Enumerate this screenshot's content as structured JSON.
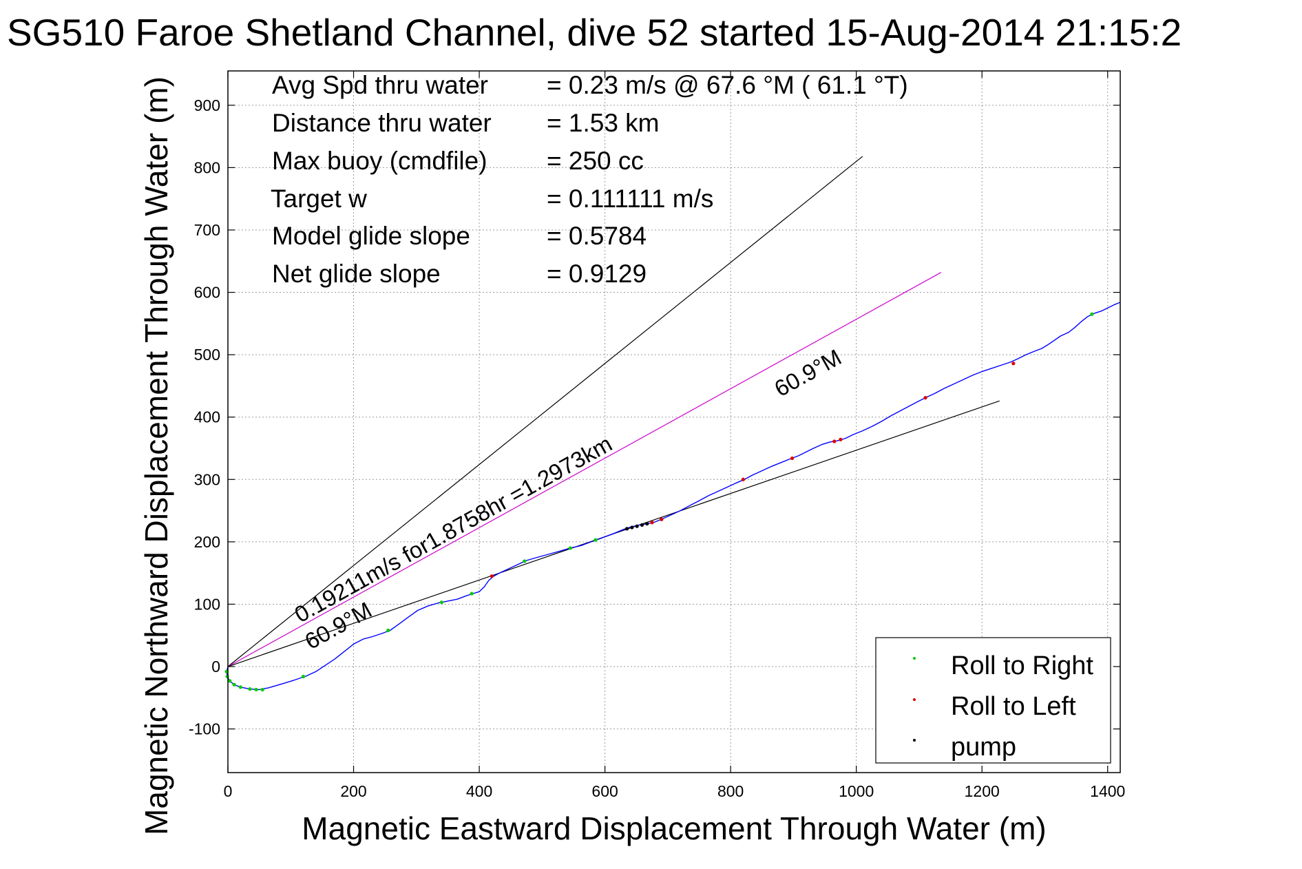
{
  "chart_data": {
    "type": "line",
    "title": "SG510 Faroe Shetland Channel, dive 52 started 15-Aug-2014 21:15:2",
    "xlabel": "Magnetic Eastward Displacement Through Water (m)",
    "ylabel": "Magnetic Northward Displacement Through Water (m)",
    "xlim": [
      0,
      1420
    ],
    "ylim": [
      -170,
      955
    ],
    "xticks": [
      0,
      200,
      400,
      600,
      800,
      1000,
      1200,
      1400
    ],
    "yticks": [
      -100,
      0,
      100,
      200,
      300,
      400,
      500,
      600,
      700,
      800,
      900
    ],
    "grid": true,
    "legend_position": "bottom-right",
    "stats": [
      {
        "label": "Avg Spd thru water",
        "value": "=  0.23 m/s @  67.6 °M ( 61.1 °T)"
      },
      {
        "label": "Distance thru water",
        "value": "=  1.53 km"
      },
      {
        "label": "Max buoy (cmdfile)",
        "value": "= 250 cc"
      },
      {
        "label": "Target w",
        "value": "= 0.111111 m/s"
      },
      {
        "label": "Model glide slope",
        "value": "= 0.5784"
      },
      {
        "label": "Net glide slope",
        "value": "= 0.9129"
      }
    ],
    "annotations": {
      "speed_line": "0.19211m/s for1.8758hr =1.2973km",
      "heading_upper": "60.9°M",
      "heading_lower": "60.9°M"
    },
    "reference_lines": [
      {
        "color": "#000000",
        "points": [
          [
            0,
            0
          ],
          [
            1010,
            818
          ]
        ]
      },
      {
        "color": "#cc00cc",
        "points": [
          [
            0,
            0
          ],
          [
            1135,
            632
          ]
        ]
      },
      {
        "color": "#000000",
        "points": [
          [
            0,
            0
          ],
          [
            1228,
            426
          ]
        ]
      }
    ],
    "track": {
      "color": "#0000ff",
      "points": [
        [
          0,
          0
        ],
        [
          -2,
          -8
        ],
        [
          -1,
          -16
        ],
        [
          3,
          -23
        ],
        [
          10,
          -29
        ],
        [
          20,
          -33
        ],
        [
          35,
          -36
        ],
        [
          50,
          -37
        ],
        [
          65,
          -34
        ],
        [
          85,
          -28
        ],
        [
          105,
          -22
        ],
        [
          125,
          -15
        ],
        [
          140,
          -8
        ],
        [
          155,
          2
        ],
        [
          170,
          12
        ],
        [
          185,
          24
        ],
        [
          200,
          36
        ],
        [
          215,
          44
        ],
        [
          230,
          48
        ],
        [
          245,
          53
        ],
        [
          258,
          58
        ],
        [
          272,
          68
        ],
        [
          288,
          80
        ],
        [
          302,
          90
        ],
        [
          318,
          97
        ],
        [
          335,
          102
        ],
        [
          350,
          105
        ],
        [
          365,
          108
        ],
        [
          378,
          113
        ],
        [
          390,
          117
        ],
        [
          400,
          120
        ],
        [
          408,
          128
        ],
        [
          415,
          138
        ],
        [
          423,
          145
        ],
        [
          432,
          150
        ],
        [
          445,
          156
        ],
        [
          460,
          163
        ],
        [
          475,
          170
        ],
        [
          492,
          175
        ],
        [
          510,
          180
        ],
        [
          528,
          185
        ],
        [
          545,
          190
        ],
        [
          562,
          194
        ],
        [
          578,
          200
        ],
        [
          592,
          205
        ],
        [
          605,
          210
        ],
        [
          618,
          215
        ],
        [
          630,
          220
        ],
        [
          642,
          224
        ],
        [
          655,
          227
        ],
        [
          668,
          229
        ],
        [
          680,
          232
        ],
        [
          692,
          237
        ],
        [
          705,
          243
        ],
        [
          720,
          250
        ],
        [
          735,
          258
        ],
        [
          750,
          266
        ],
        [
          765,
          274
        ],
        [
          780,
          281
        ],
        [
          795,
          288
        ],
        [
          808,
          294
        ],
        [
          822,
          300
        ],
        [
          835,
          307
        ],
        [
          850,
          314
        ],
        [
          865,
          321
        ],
        [
          880,
          327
        ],
        [
          895,
          333
        ],
        [
          908,
          338
        ],
        [
          920,
          344
        ],
        [
          932,
          350
        ],
        [
          945,
          356
        ],
        [
          958,
          360
        ],
        [
          970,
          362
        ],
        [
          983,
          366
        ],
        [
          995,
          372
        ],
        [
          1010,
          378
        ],
        [
          1025,
          385
        ],
        [
          1040,
          393
        ],
        [
          1055,
          402
        ],
        [
          1070,
          410
        ],
        [
          1085,
          418
        ],
        [
          1100,
          426
        ],
        [
          1112,
          432
        ],
        [
          1125,
          438
        ],
        [
          1140,
          446
        ],
        [
          1155,
          453
        ],
        [
          1170,
          460
        ],
        [
          1185,
          467
        ],
        [
          1200,
          473
        ],
        [
          1215,
          478
        ],
        [
          1230,
          483
        ],
        [
          1245,
          488
        ],
        [
          1258,
          494
        ],
        [
          1270,
          500
        ],
        [
          1282,
          505
        ],
        [
          1295,
          510
        ],
        [
          1305,
          516
        ],
        [
          1315,
          523
        ],
        [
          1325,
          530
        ],
        [
          1338,
          536
        ],
        [
          1348,
          544
        ],
        [
          1358,
          553
        ],
        [
          1368,
          561
        ],
        [
          1378,
          566
        ],
        [
          1390,
          570
        ],
        [
          1400,
          575
        ],
        [
          1410,
          580
        ],
        [
          1420,
          584
        ]
      ]
    },
    "series": [
      {
        "name": "Roll to Right",
        "color": "#00cc00",
        "points": [
          [
            -2,
            -8
          ],
          [
            -1,
            -16
          ],
          [
            3,
            -23
          ],
          [
            10,
            -29
          ],
          [
            20,
            -33
          ],
          [
            35,
            -36
          ],
          [
            45,
            -37
          ],
          [
            55,
            -37
          ],
          [
            120,
            -16
          ],
          [
            255,
            58
          ],
          [
            340,
            103
          ],
          [
            388,
            117
          ],
          [
            472,
            169
          ],
          [
            545,
            190
          ],
          [
            585,
            203
          ],
          [
            1375,
            565
          ]
        ]
      },
      {
        "name": "Roll to Left",
        "color": "#dd0000",
        "points": [
          [
            420,
            145
          ],
          [
            675,
            231
          ],
          [
            690,
            236
          ],
          [
            820,
            300
          ],
          [
            898,
            334
          ],
          [
            965,
            361
          ],
          [
            975,
            364
          ],
          [
            1110,
            431
          ],
          [
            1250,
            486
          ]
        ]
      },
      {
        "name": "pump",
        "color": "#000000",
        "points": [
          [
            635,
            221
          ],
          [
            643,
            223
          ],
          [
            651,
            225
          ],
          [
            659,
            227
          ],
          [
            667,
            229
          ]
        ]
      }
    ]
  }
}
